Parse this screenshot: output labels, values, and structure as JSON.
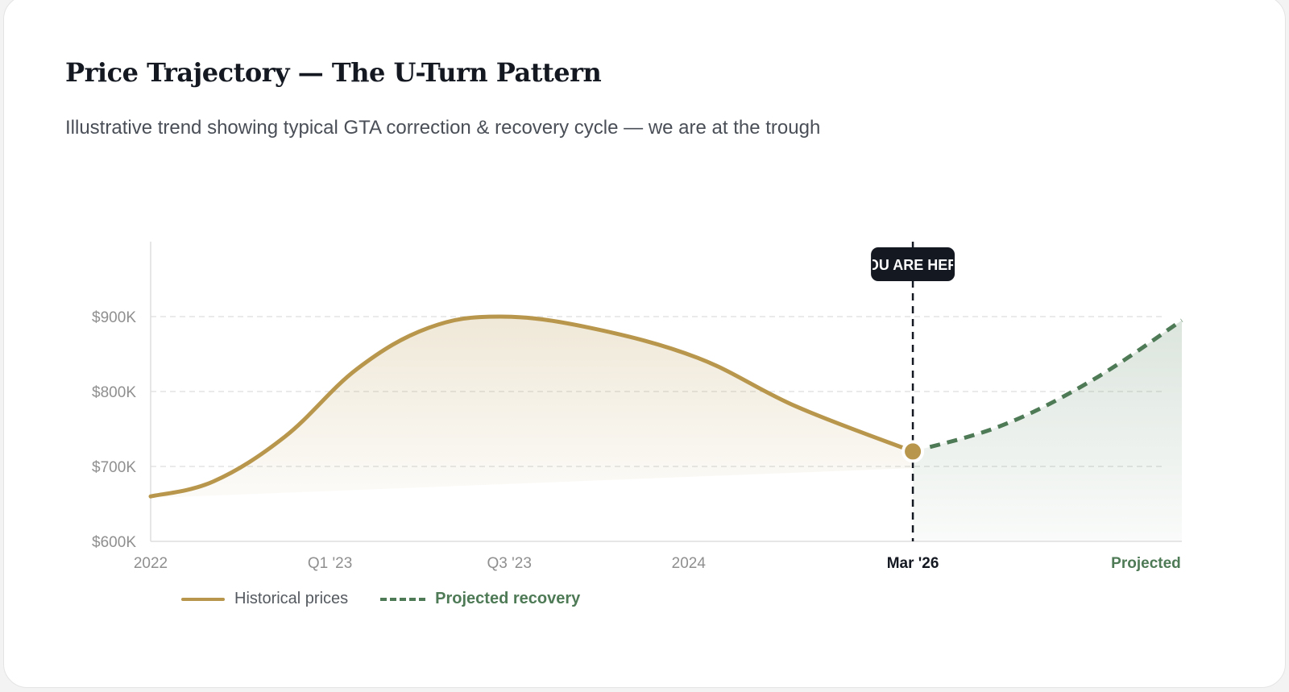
{
  "header": {
    "title": "Price Trajectory — The U-Turn Pattern",
    "subtitle": "Illustrative trend showing typical GTA correction & recovery cycle — we are at the trough"
  },
  "colors": {
    "historical": "#b8974c",
    "projected": "#4e7a56",
    "marker_bg": "#141821"
  },
  "chart_data": {
    "type": "line",
    "title": "Price Trajectory — The U-Turn Pattern",
    "subtitle": "Illustrative trend showing typical GTA correction & recovery cycle — we are at the trough",
    "xlabel": "",
    "ylabel": "",
    "ylim": [
      600000,
      1000000
    ],
    "y_ticks": [
      600000,
      700000,
      800000,
      900000
    ],
    "y_tick_labels": [
      "$600K",
      "$700K",
      "$800K",
      "$900K"
    ],
    "x_range": [
      0,
      5.75
    ],
    "x_ticks": [
      {
        "x": 0,
        "label": "2022",
        "style": "normal"
      },
      {
        "x": 1,
        "label": "Q1 '23",
        "style": "normal"
      },
      {
        "x": 2,
        "label": "Q3 '23",
        "style": "normal"
      },
      {
        "x": 3,
        "label": "2024",
        "style": "normal"
      },
      {
        "x": 4.25,
        "label": "Mar '26",
        "style": "now"
      },
      {
        "x": 5.55,
        "label": "Projected",
        "style": "proj"
      }
    ],
    "grid": true,
    "series": [
      {
        "name": "Historical prices",
        "style": "solid",
        "points": [
          [
            0,
            660000
          ],
          [
            0.35,
            680000
          ],
          [
            0.75,
            740000
          ],
          [
            1.15,
            830000
          ],
          [
            1.55,
            885000
          ],
          [
            1.95,
            900000
          ],
          [
            2.45,
            885000
          ],
          [
            3.05,
            845000
          ],
          [
            3.6,
            780000
          ],
          [
            4.25,
            720000
          ]
        ]
      },
      {
        "name": "Projected recovery",
        "style": "dashed",
        "points": [
          [
            4.25,
            720000
          ],
          [
            4.75,
            755000
          ],
          [
            5.25,
            815000
          ],
          [
            5.75,
            895000
          ]
        ]
      }
    ],
    "marker": {
      "x": 4.25,
      "label": "YOU ARE HERE"
    }
  },
  "legend": {
    "historical_label": "Historical prices",
    "projected_label": "Projected recovery"
  }
}
